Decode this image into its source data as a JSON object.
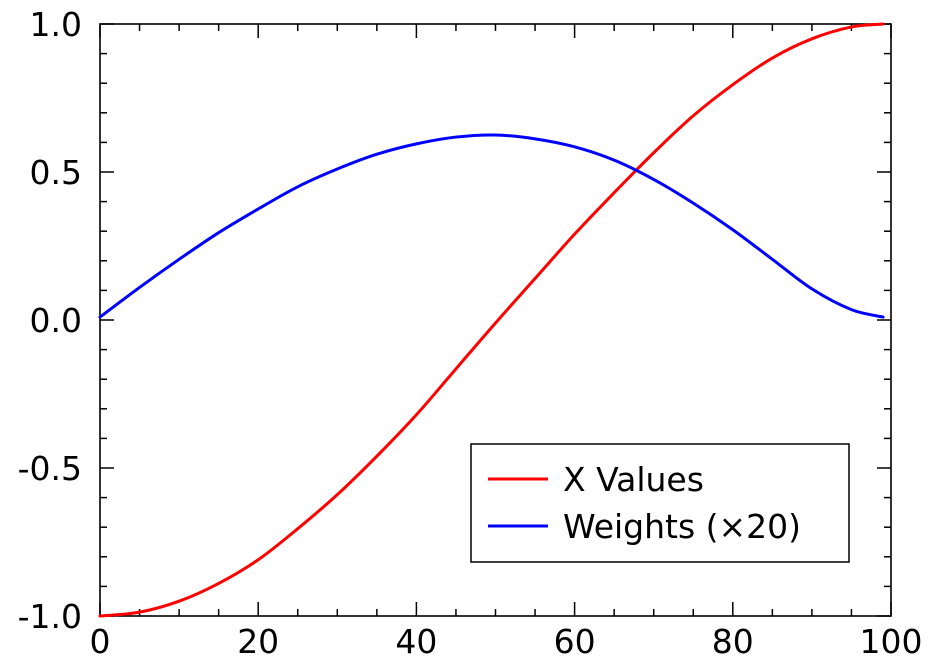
{
  "chart_data": {
    "type": "line",
    "title": "",
    "xlabel": "",
    "ylabel": "",
    "xlim": [
      0,
      100
    ],
    "ylim": [
      -1.0,
      1.0
    ],
    "grid": false,
    "legend_position": "bottom-right",
    "x_ticks": [
      0,
      20,
      40,
      60,
      80,
      100
    ],
    "x_tick_labels": [
      "0",
      "20",
      "40",
      "60",
      "80",
      "100"
    ],
    "y_ticks": [
      -1.0,
      -0.5,
      0.0,
      0.5,
      1.0
    ],
    "y_tick_labels": [
      "-1.0",
      "-0.5",
      "0.0",
      "0.5",
      "1.0"
    ],
    "series": [
      {
        "name": "X Values",
        "color": "#ff0000",
        "x": [
          0,
          5,
          10,
          15,
          20,
          25,
          30,
          35,
          40,
          45,
          50,
          55,
          60,
          65,
          70,
          75,
          80,
          85,
          90,
          95,
          99
        ],
        "y": [
          -1.0,
          -0.987,
          -0.95,
          -0.89,
          -0.81,
          -0.705,
          -0.59,
          -0.46,
          -0.32,
          -0.165,
          -0.01,
          0.14,
          0.29,
          0.43,
          0.565,
          0.69,
          0.795,
          0.885,
          0.95,
          0.99,
          1.0
        ]
      },
      {
        "name": "Weights (×20)",
        "color": "#0000ff",
        "x": [
          0,
          5,
          10,
          15,
          20,
          25,
          30,
          35,
          40,
          45,
          50,
          55,
          60,
          65,
          70,
          75,
          80,
          85,
          90,
          95,
          99
        ],
        "y": [
          0.01,
          0.11,
          0.205,
          0.295,
          0.375,
          0.45,
          0.51,
          0.56,
          0.595,
          0.618,
          0.625,
          0.612,
          0.585,
          0.54,
          0.475,
          0.395,
          0.305,
          0.205,
          0.105,
          0.035,
          0.01
        ]
      }
    ]
  }
}
